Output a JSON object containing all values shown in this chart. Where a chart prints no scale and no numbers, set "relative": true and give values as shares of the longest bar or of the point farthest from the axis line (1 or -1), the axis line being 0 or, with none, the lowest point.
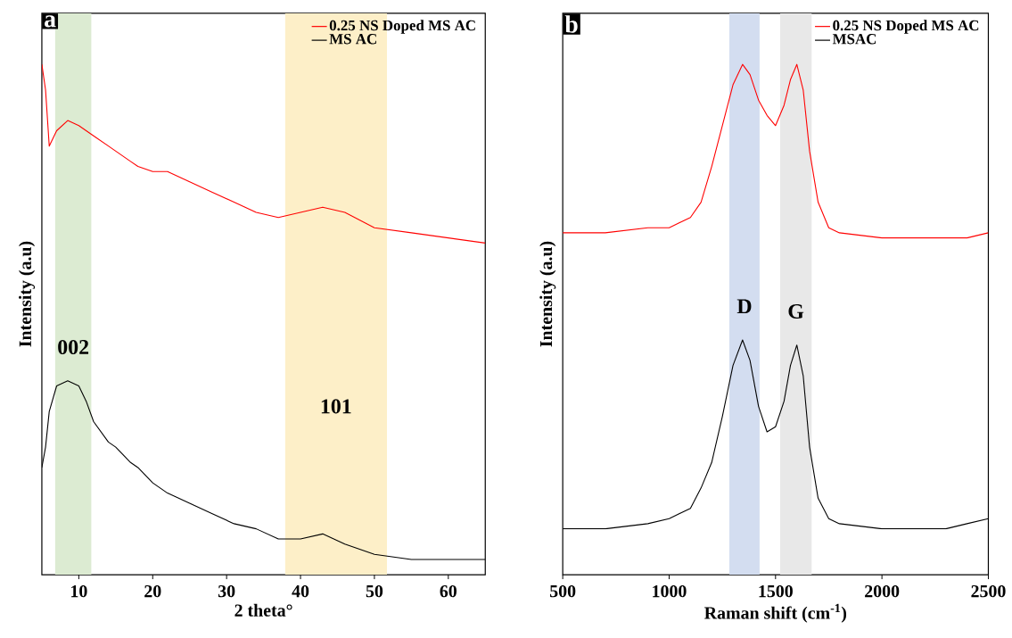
{
  "chart_data": [
    {
      "type": "line",
      "relative": true,
      "xlabel": "2 theta°",
      "ylabel": "Intensity (a.u)",
      "xlim": [
        5,
        65
      ],
      "xticks": [
        10,
        20,
        30,
        40,
        50,
        60
      ],
      "tick_labels": "x",
      "legend": "top right",
      "x": [
        5,
        5.5,
        6,
        7,
        8.5,
        10,
        11,
        12,
        14,
        15,
        17,
        18,
        20,
        22,
        25,
        28,
        31,
        34,
        37,
        40,
        43,
        46,
        50,
        55,
        60,
        65
      ],
      "series": [
        {
          "name": "0.25 NS Doped MS AC",
          "color": "#ff0000",
          "values": [
            1.0,
            0.95,
            0.84,
            0.87,
            0.89,
            0.88,
            0.87,
            0.86,
            0.84,
            0.83,
            0.81,
            0.8,
            0.79,
            0.79,
            0.77,
            0.75,
            0.73,
            0.71,
            0.7,
            0.71,
            0.72,
            0.71,
            0.68,
            0.67,
            0.66,
            0.65
          ]
        },
        {
          "name": "MS AC",
          "color": "#000000",
          "values": [
            0.21,
            0.25,
            0.32,
            0.37,
            0.38,
            0.37,
            0.34,
            0.3,
            0.26,
            0.25,
            0.22,
            0.21,
            0.18,
            0.16,
            0.14,
            0.12,
            0.1,
            0.09,
            0.07,
            0.07,
            0.08,
            0.06,
            0.04,
            0.03,
            0.03,
            0.03
          ]
        }
      ],
      "bands": [
        {
          "axis": "x",
          "from": 6.8,
          "to": 11.7,
          "color": "#dcebd2",
          "label": "002"
        },
        {
          "axis": "x",
          "from": 37.9,
          "to": 51.7,
          "color": "#fdefc8",
          "label": "101"
        }
      ],
      "annotations": [
        "a"
      ]
    },
    {
      "type": "line",
      "relative": true,
      "xlabel": "Raman shift (cm$^{-1}$)",
      "ylabel": "Intensity (a.u)",
      "xlim": [
        500,
        2500
      ],
      "xticks": [
        500,
        1000,
        1500,
        2000,
        2500
      ],
      "tick_labels": "x",
      "legend": "top right",
      "x": [
        500,
        700,
        900,
        1000,
        1100,
        1150,
        1200,
        1250,
        1300,
        1345,
        1380,
        1420,
        1460,
        1500,
        1540,
        1570,
        1600,
        1630,
        1660,
        1700,
        1750,
        1800,
        2000,
        2200,
        2300,
        2400,
        2500
      ],
      "series": [
        {
          "name": "0.25 NS Doped MS AC",
          "color": "#ff0000",
          "values": [
            0.67,
            0.67,
            0.68,
            0.68,
            0.7,
            0.73,
            0.8,
            0.88,
            0.96,
            1.0,
            0.98,
            0.93,
            0.9,
            0.88,
            0.92,
            0.97,
            1.0,
            0.95,
            0.83,
            0.73,
            0.68,
            0.67,
            0.66,
            0.66,
            0.66,
            0.66,
            0.67
          ]
        },
        {
          "name": "MSAC",
          "color": "#000000",
          "values": [
            0.09,
            0.09,
            0.1,
            0.11,
            0.13,
            0.17,
            0.22,
            0.31,
            0.41,
            0.46,
            0.42,
            0.33,
            0.28,
            0.29,
            0.34,
            0.41,
            0.45,
            0.39,
            0.25,
            0.15,
            0.11,
            0.1,
            0.09,
            0.09,
            0.09,
            0.1,
            0.11
          ]
        }
      ],
      "bands": [
        {
          "axis": "x",
          "from": 1283,
          "to": 1425,
          "color": "#d3ddf0",
          "label": "D"
        },
        {
          "axis": "x",
          "from": 1521,
          "to": 1670,
          "color": "#e8e8e8",
          "label": "G"
        }
      ],
      "annotations": [
        "b"
      ]
    }
  ]
}
